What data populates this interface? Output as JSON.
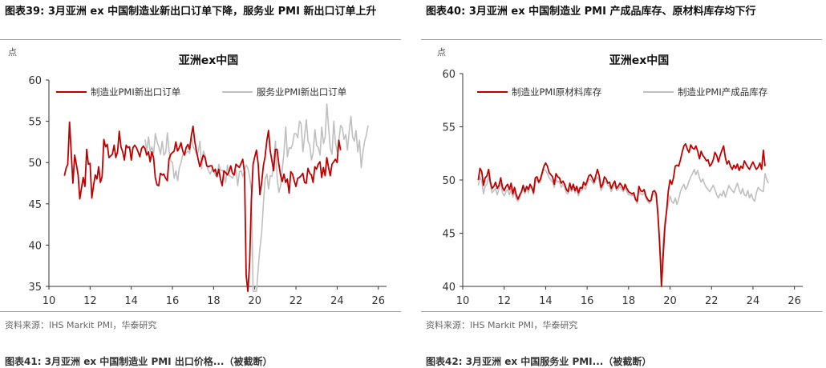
{
  "figures": [
    {
      "title": "图表39:  3月亚洲 ex 中国制造业新出口订单下降，服务业 PMI 新出口订单上升",
      "source": "资料来源：IHS Markit PMI，华泰研究",
      "next_title": "图表41:  3月亚洲 ex 中国制造业 PMI 出口价格...（被截断）",
      "colors": {
        "manufacturing": "#c00000",
        "services": "#bfbfbf",
        "axis": "#333333"
      }
    },
    {
      "title": "图表40:  3月亚洲 ex 中国制造业 PMI 产成品库存、原材料库存均下行",
      "source": "资料来源：IHS Markit PMI，华泰研究",
      "next_title": "图表42:  3月亚洲 ex 中国服务业 PMI...（被截断）",
      "colors": {
        "manufacturing": "#c00000",
        "services": "#bfbfbf",
        "axis": "#333333"
      }
    }
  ],
  "chart_data": [
    {
      "type": "line",
      "title": "亚洲ex中国",
      "unit_label": "点",
      "xlabel": "",
      "ylabel": "",
      "xlim": [
        2010,
        2026.4
      ],
      "ylim": [
        35,
        60
      ],
      "yticks": [
        35,
        40,
        45,
        50,
        55,
        60
      ],
      "xticks": [
        10,
        12,
        14,
        16,
        18,
        20,
        22,
        24,
        26
      ],
      "legend_position": "top",
      "grid": false,
      "series": [
        {
          "name": "制造业PMI新出口订单",
          "color": "#c00000",
          "start": 2010.75,
          "step": 0.08333,
          "values": [
            48.4,
            49.3,
            49.8,
            54.9,
            51.2,
            47.5,
            50.9,
            49.8,
            48.5,
            45.6,
            46.9,
            48.2,
            47.1,
            51.6,
            49.8,
            49.9,
            45.7,
            47.2,
            48.5,
            48.0,
            49.5,
            47.6,
            48.3,
            52.8,
            51.9,
            52.2,
            50.6,
            50.8,
            51.0,
            52.1,
            50.6,
            51.3,
            53.8,
            51.9,
            51.3,
            50.3,
            52.1,
            51.8,
            51.9,
            50.3,
            51.8,
            52.1,
            51.8,
            51.3,
            50.7,
            51.7,
            52.0,
            51.7,
            50.9,
            51.3,
            50.1,
            51.3,
            50.6,
            48.2,
            47.3,
            47.2,
            48.7,
            48.5,
            48.6,
            48.1,
            47.8,
            50.4,
            51.0,
            51.2,
            51.4,
            52.5,
            51.4,
            51.8,
            52.4,
            51.4,
            50.9,
            51.8,
            52.2,
            51.6,
            53.2,
            54.4,
            52.6,
            51.4,
            50.4,
            49.5,
            50.2,
            50.9,
            50.6,
            49.6,
            49.5,
            49.6,
            49.6,
            48.9,
            49.2,
            48.3,
            49.2,
            48.0,
            47.2,
            49.0,
            48.8,
            48.5,
            48.9,
            49.6,
            48.7,
            48.5,
            49.8,
            49.6,
            49.4,
            49.9,
            50.4,
            48.8,
            36.3,
            33.9,
            37.9,
            45.4,
            49.8,
            50.7,
            51.5,
            49.8,
            46.1,
            47.6,
            49.6,
            50.7,
            52.6,
            53.9,
            51.4,
            50.2,
            49.0,
            51.6,
            51.6,
            49.9,
            48.5,
            47.7,
            48.6,
            47.6,
            48.0,
            46.3,
            48.9,
            48.6,
            47.8,
            47.1,
            48.1,
            48.2,
            48.4,
            48.7,
            47.6,
            47.5,
            49.3,
            48.7,
            48.5,
            47.6,
            49.5,
            49.2,
            49.8,
            50.1,
            48.2,
            49.4,
            48.4,
            50.6,
            49.4,
            48.4,
            49.8,
            50.1,
            50.4,
            50.0,
            52.7,
            51.5
          ]
        },
        {
          "name": "服务业PMI新出口订单",
          "color": "#bfbfbf",
          "start": 2014.67,
          "step": 0.08333,
          "values": [
            52.8,
            51.4,
            53.1,
            51.3,
            51.9,
            51.1,
            53.5,
            52.5,
            51.9,
            51.0,
            52.6,
            50.9,
            51.2,
            53.6,
            51.4,
            50.2,
            50.0,
            48.1,
            49.0,
            47.8,
            49.4,
            50.0,
            51.0,
            51.0,
            51.2,
            51.4,
            51.1,
            53.2,
            51.9,
            51.6,
            51.0,
            51.3,
            52.6,
            49.3,
            51.4,
            50.9,
            49.6,
            49.0,
            48.6,
            49.2,
            49.1,
            48.4,
            48.3,
            49.8,
            49.0,
            49.1,
            48.6,
            47.6,
            49.7,
            48.4,
            48.3,
            48.1,
            48.6,
            49.1,
            47.2,
            48.9,
            49.0,
            48.3,
            49.2,
            49.7,
            49.3,
            48.2,
            46.5,
            34.1,
            32.4,
            34.0,
            37.3,
            39.7,
            41.5,
            45.1,
            48.0,
            48.6,
            46.8,
            48.4,
            48.3,
            50.4,
            52.6,
            48.1,
            46.4,
            47.2,
            49.2,
            51.3,
            54.3,
            50.7,
            51.8,
            51.7,
            52.2,
            53.5,
            53.5,
            53.0,
            55.0,
            54.7,
            51.3,
            53.2,
            55.2,
            52.6,
            52.1,
            50.3,
            51.2,
            54.0,
            52.1,
            51.8,
            50.9,
            54.3,
            52.3,
            53.1,
            57.1,
            54.2,
            51.7,
            51.0,
            55.0,
            52.4,
            51.3,
            52.7,
            54.5,
            54.2,
            52.8,
            53.4,
            51.5,
            53.8,
            55.6,
            53.1,
            52.6,
            53.9,
            51.3,
            52.7,
            49.4,
            51.3,
            52.6,
            53.3,
            54.5
          ]
        }
      ]
    },
    {
      "type": "line",
      "title": "亚洲ex中国",
      "unit_label": "点",
      "xlabel": "",
      "ylabel": "",
      "xlim": [
        2010,
        2026.4
      ],
      "ylim": [
        40,
        60
      ],
      "yticks": [
        40,
        45,
        50,
        55,
        60
      ],
      "xticks": [
        10,
        12,
        14,
        16,
        18,
        20,
        22,
        24,
        26
      ],
      "legend_position": "top",
      "grid": false,
      "series": [
        {
          "name": "制造业PMI原材料库存",
          "color": "#c00000",
          "start": 2010.75,
          "step": 0.08333,
          "values": [
            50.0,
            51.1,
            50.8,
            49.5,
            50.2,
            50.4,
            51.0,
            49.8,
            49.2,
            49.4,
            49.8,
            49.2,
            49.5,
            50.2,
            49.3,
            49.0,
            49.4,
            49.6,
            49.1,
            49.7,
            48.7,
            49.3,
            48.6,
            48.2,
            48.6,
            48.9,
            49.5,
            48.9,
            49.4,
            49.1,
            49.6,
            49.3,
            48.8,
            50.2,
            50.3,
            49.8,
            50.1,
            50.7,
            51.3,
            51.6,
            51.3,
            50.7,
            50.5,
            50.3,
            49.6,
            50.6,
            50.3,
            50.2,
            49.7,
            49.9,
            49.6,
            49.1,
            48.9,
            49.7,
            49.1,
            49.6,
            49.0,
            49.4,
            48.8,
            49.3,
            49.2,
            49.8,
            49.5,
            49.9,
            50.4,
            50.5,
            50.2,
            49.8,
            50.4,
            51.0,
            50.4,
            49.3,
            49.6,
            50.3,
            50.1,
            49.7,
            49.8,
            49.2,
            49.6,
            49.9,
            49.2,
            49.4,
            49.7,
            49.5,
            49.1,
            49.6,
            49.2,
            48.9,
            48.8,
            48.7,
            48.8,
            48.2,
            48.0,
            49.4,
            49.0,
            48.9,
            49.1,
            48.5,
            48.2,
            48.0,
            48.1,
            48.9,
            49.0,
            48.7,
            46.8,
            44.1,
            40.0,
            42.8,
            45.6,
            47.1,
            49.0,
            50.0,
            49.6,
            50.2,
            51.3,
            51.4,
            51.3,
            51.9,
            52.6,
            53.2,
            53.4,
            52.9,
            52.6,
            53.3,
            53.0,
            52.9,
            53.2,
            52.7,
            52.0,
            52.7,
            52.3,
            52.1,
            51.8,
            51.9,
            51.3,
            51.5,
            51.9,
            52.6,
            52.3,
            51.7,
            52.3,
            52.8,
            53.2,
            52.1,
            51.5,
            51.8,
            51.3,
            51.0,
            51.4,
            51.1,
            51.5,
            50.9,
            51.3,
            51.1,
            51.8,
            51.5,
            51.2,
            51.0,
            51.4,
            51.7,
            51.3,
            51.0,
            51.2,
            51.6,
            51.0,
            52.8,
            51.3
          ]
        },
        {
          "name": "制造业PMI产成品库存",
          "color": "#bfbfbf",
          "start": 2010.75,
          "step": 0.08333,
          "values": [
            49.5,
            50.3,
            49.9,
            48.7,
            49.4,
            49.6,
            50.4,
            49.5,
            48.8,
            49.0,
            49.2,
            48.6,
            49.2,
            49.7,
            48.8,
            48.5,
            48.9,
            49.1,
            48.6,
            49.2,
            48.4,
            48.9,
            48.2,
            48.0,
            48.3,
            48.8,
            49.2,
            48.7,
            49.2,
            48.8,
            49.4,
            49.2,
            48.6,
            49.7,
            50.1,
            49.7,
            49.8,
            50.5,
            51.0,
            50.9,
            50.6,
            50.2,
            50.0,
            49.8,
            49.3,
            50.1,
            49.8,
            49.9,
            49.3,
            49.6,
            49.3,
            48.8,
            48.7,
            49.2,
            48.9,
            49.3,
            48.8,
            49.1,
            48.5,
            49.0,
            49.0,
            49.4,
            49.1,
            49.6,
            50.0,
            50.1,
            49.8,
            49.6,
            50.0,
            50.3,
            49.9,
            49.0,
            49.3,
            49.9,
            49.8,
            49.5,
            49.4,
            48.9,
            49.3,
            49.6,
            49.0,
            49.1,
            49.4,
            49.1,
            48.9,
            49.3,
            48.9,
            48.6,
            48.6,
            48.5,
            48.6,
            48.1,
            47.8,
            49.0,
            48.7,
            48.6,
            48.8,
            48.3,
            48.0,
            47.8,
            48.0,
            48.6,
            48.7,
            48.3,
            46.5,
            43.2,
            41.8,
            44.2,
            46.1,
            47.0,
            47.8,
            48.5,
            48.0,
            47.8,
            48.3,
            47.7,
            48.2,
            48.9,
            49.3,
            49.6,
            49.1,
            49.4,
            49.9,
            50.3,
            50.6,
            51.0,
            50.5,
            50.9,
            50.2,
            49.8,
            50.1,
            49.6,
            49.3,
            49.1,
            48.9,
            49.2,
            49.5,
            49.1,
            48.6,
            48.3,
            48.7,
            48.5,
            49.0,
            48.4,
            48.9,
            49.5,
            49.2,
            49.0,
            48.8,
            49.3,
            49.7,
            49.1,
            48.7,
            49.2,
            48.6,
            48.5,
            49.0,
            48.3,
            48.7,
            48.2,
            48.0,
            48.8,
            49.3,
            49.1,
            49.0,
            48.9,
            50.6,
            50.0,
            49.7
          ]
        }
      ]
    }
  ]
}
